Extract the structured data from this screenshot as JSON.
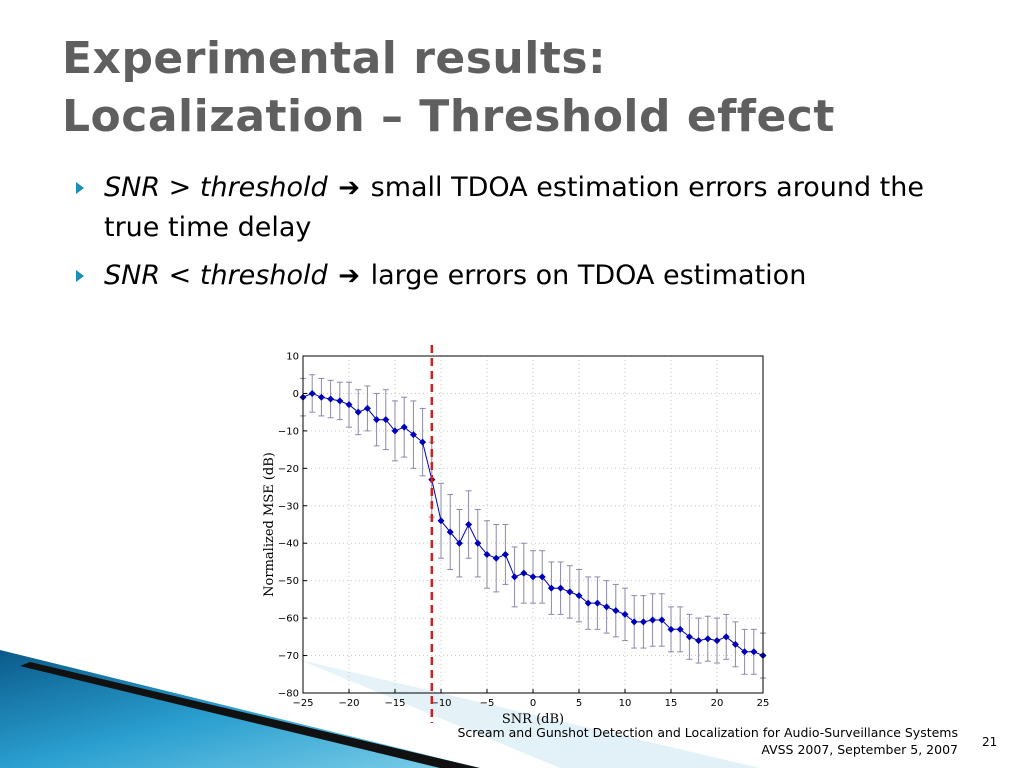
{
  "slide": {
    "title_line1": "Experimental results:",
    "title_line2": "Localization – Threshold effect",
    "bullets": [
      {
        "cond": "SNR > threshold",
        "arrow": "➔",
        "text": "small TDOA estimation errors around the true time delay"
      },
      {
        "cond": "SNR < threshold",
        "arrow": "➔",
        "text": "large errors on TDOA estimation"
      }
    ],
    "footer_line1": "Scream and Gunshot Detection and Localization for Audio-Surveillance Systems",
    "footer_line2": "AVSS 2007, September 5, 2007",
    "page_number": "21"
  },
  "colors": {
    "accent": "#1b8fb5",
    "title": "#5f5f5f",
    "series": "#0000bb",
    "errorbar": "#8a8aa8",
    "threshold": "#cc2222"
  },
  "chart_data": {
    "type": "line",
    "xlabel": "SNR (dB)",
    "ylabel": "Normalized MSE (dB)",
    "xlim": [
      -25,
      25
    ],
    "ylim": [
      -80,
      10
    ],
    "xticks": [
      -25,
      -20,
      -15,
      -10,
      -5,
      0,
      5,
      10,
      15,
      20,
      25
    ],
    "yticks": [
      10,
      0,
      -10,
      -20,
      -30,
      -40,
      -50,
      -60,
      -70,
      -80
    ],
    "grid": true,
    "threshold_x": -11,
    "series": [
      {
        "x": [
          -25,
          -24,
          -23,
          -22,
          -21,
          -20,
          -19,
          -18,
          -17,
          -16,
          -15,
          -14,
          -13,
          -12,
          -11,
          -10,
          -9,
          -8,
          -7,
          -6,
          -5,
          -4,
          -3,
          -2,
          -1,
          0,
          1,
          2,
          3,
          4,
          5,
          6,
          7,
          8,
          9,
          10,
          11,
          12,
          13,
          14,
          15,
          16,
          17,
          18,
          19,
          20,
          21,
          22,
          23,
          24,
          25
        ],
        "y": [
          -1,
          0,
          -1,
          -1.5,
          -2,
          -3,
          -5,
          -4,
          -7,
          -7,
          -10,
          -9,
          -11,
          -13,
          -23,
          -34,
          -37,
          -40,
          -35,
          -40,
          -43,
          -44,
          -43,
          -49,
          -48,
          -49,
          -49,
          -52,
          -52,
          -53,
          -54,
          -56,
          -56,
          -57,
          -58,
          -59,
          -61,
          -61,
          -60.5,
          -60.5,
          -63,
          -63,
          -65,
          -66,
          -65.5,
          -66,
          -65,
          -67,
          -69,
          -69,
          -70
        ],
        "err": [
          5,
          5,
          5,
          5,
          5,
          6,
          6,
          6,
          7,
          8,
          8,
          8,
          9,
          9,
          10,
          10,
          10,
          9,
          9,
          9,
          9,
          9,
          8,
          8,
          8,
          7,
          7,
          7,
          7,
          7,
          7,
          7,
          7,
          7,
          7,
          7,
          7,
          7,
          7,
          7,
          6,
          6,
          6,
          6,
          6,
          6,
          6,
          6,
          6,
          6,
          6
        ]
      }
    ]
  }
}
